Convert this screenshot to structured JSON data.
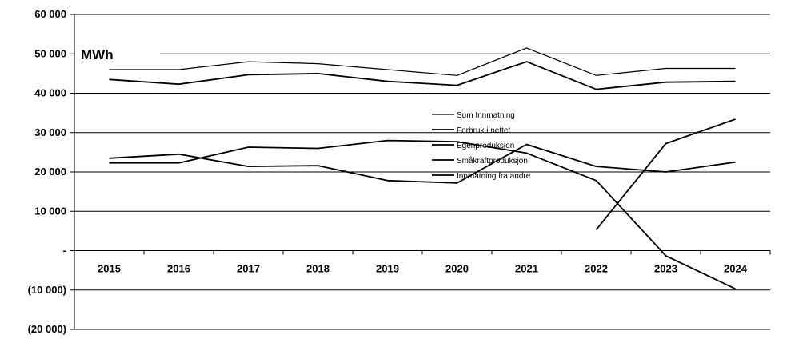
{
  "chart_data": {
    "type": "line",
    "unit_label": "MWh",
    "categories": [
      "2015",
      "2016",
      "2017",
      "2018",
      "2019",
      "2020",
      "2021",
      "2022",
      "2023",
      "2024"
    ],
    "y_ticks": [
      60000,
      50000,
      40000,
      30000,
      20000,
      10000,
      0,
      -10000,
      -20000
    ],
    "y_tick_labels": [
      "60 000",
      "50 000",
      "40 000",
      "30 000",
      "20 000",
      "10 000",
      "-",
      "(10 000)",
      "(20 000)"
    ],
    "ylim": [
      -20000,
      60000
    ],
    "grid": "horizontal",
    "legend_position": "center",
    "series": [
      {
        "name": "Sum Innmatning",
        "color": "#000000",
        "values": [
          46000,
          46000,
          48000,
          47500,
          46000,
          44500,
          51500,
          44500,
          46300,
          46300
        ]
      },
      {
        "name": "Forbruk i nettet",
        "color": "#000000",
        "values": [
          43500,
          42300,
          44700,
          45000,
          43000,
          42000,
          48000,
          41000,
          42800,
          43000
        ]
      },
      {
        "name": "Egenproduksjon",
        "color": "#000000",
        "values": [
          23500,
          24500,
          21400,
          21600,
          17800,
          17200,
          27000,
          21400,
          20000,
          22500
        ]
      },
      {
        "name": "Småkraftproduksjon",
        "color": "#000000",
        "values": [
          22300,
          22300,
          26300,
          26000,
          28000,
          27700,
          24800,
          17800,
          -1300,
          -9700
        ]
      },
      {
        "name": "Innmatning fra andre",
        "color": "#000000",
        "values": [
          null,
          null,
          null,
          null,
          null,
          null,
          null,
          5300,
          27200,
          33400
        ]
      }
    ]
  }
}
